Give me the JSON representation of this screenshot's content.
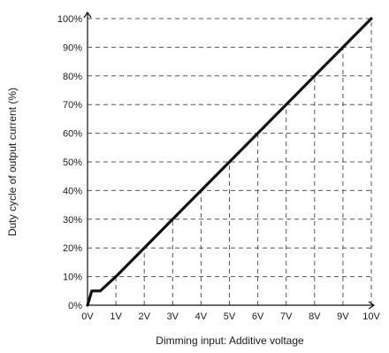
{
  "chart_data": {
    "type": "line",
    "xlabel": "Dimming input: Additive voltage",
    "ylabel": "Duty cycle of output current (%)",
    "x_tick_labels": [
      "0V",
      "1V",
      "2V",
      "3V",
      "4V",
      "5V",
      "6V",
      "7V",
      "8V",
      "9V",
      "10V"
    ],
    "y_tick_labels": [
      "0%",
      "10%",
      "20%",
      "30%",
      "40%",
      "50%",
      "60%",
      "70%",
      "80%",
      "90%",
      "100%"
    ],
    "x_ticks": [
      0,
      1,
      2,
      3,
      4,
      5,
      6,
      7,
      8,
      9,
      10
    ],
    "y_ticks": [
      0,
      10,
      20,
      30,
      40,
      50,
      60,
      70,
      80,
      90,
      100
    ],
    "xlim": [
      0,
      10
    ],
    "ylim": [
      0,
      100
    ],
    "grid": "dashed",
    "series": [
      {
        "values": [
          {
            "x": 0.0,
            "y": 0
          },
          {
            "x": 0.15,
            "y": 5
          },
          {
            "x": 0.45,
            "y": 5
          },
          {
            "x": 1.0,
            "y": 10
          },
          {
            "x": 2.0,
            "y": 20
          },
          {
            "x": 3.0,
            "y": 30
          },
          {
            "x": 4.0,
            "y": 40
          },
          {
            "x": 5.0,
            "y": 50
          },
          {
            "x": 6.0,
            "y": 60
          },
          {
            "x": 7.0,
            "y": 70
          },
          {
            "x": 8.0,
            "y": 80
          },
          {
            "x": 9.0,
            "y": 90
          },
          {
            "x": 10.0,
            "y": 100
          }
        ]
      }
    ],
    "colors": {
      "line": "#111111",
      "grid": "#555555",
      "axis": "#111111"
    }
  }
}
